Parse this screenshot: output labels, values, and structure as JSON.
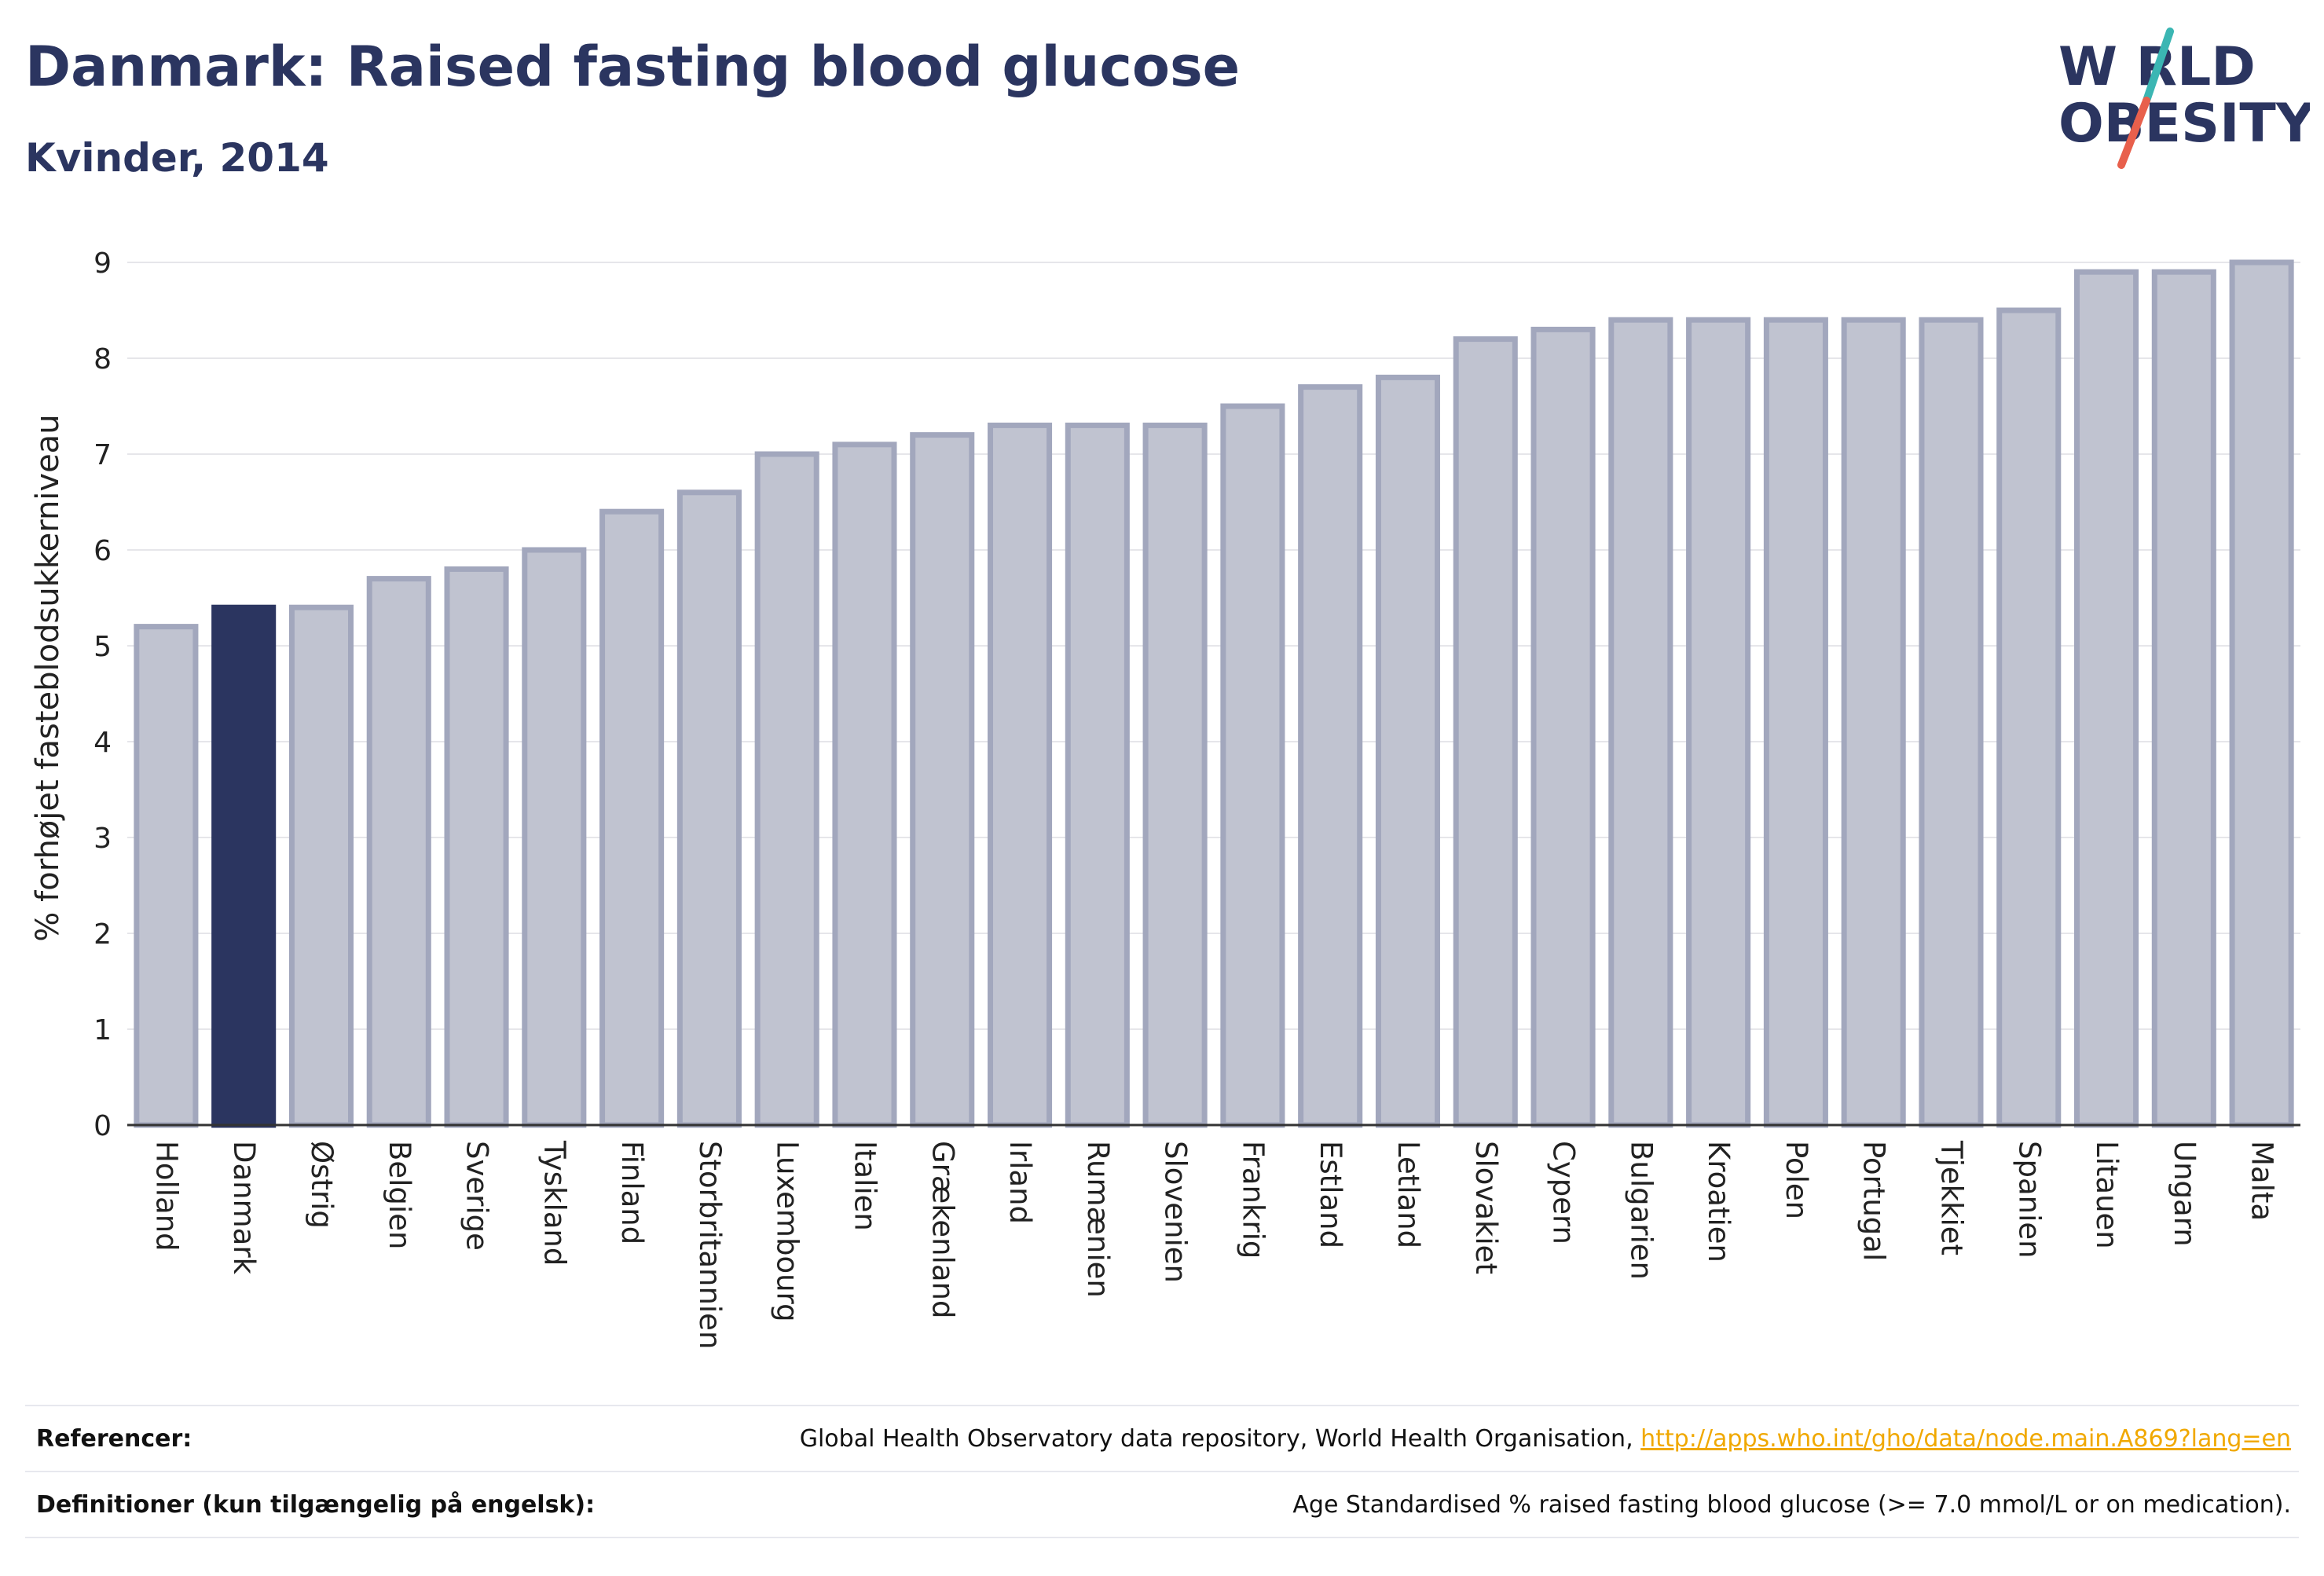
{
  "header": {
    "title": "Danmark: Raised fasting blood glucose",
    "subtitle": "Kvinder, 2014"
  },
  "logo": {
    "line1": "W RLD",
    "line2": "OBESITY",
    "accent_colors": [
      "#3bb6b3",
      "#e8604c"
    ],
    "text_color": "#2b3560"
  },
  "chart_data": {
    "type": "bar",
    "title": "Danmark: Raised fasting blood glucose",
    "subtitle": "Kvinder, 2014",
    "ylabel": "% forhøjet fasteblodsukkerniveau",
    "xlabel": "",
    "ylim": [
      0,
      9
    ],
    "yticks": [
      "0",
      "1",
      "2",
      "3",
      "4",
      "5",
      "6",
      "7",
      "8",
      "9"
    ],
    "grid": true,
    "highlight": "Danmark",
    "colors": {
      "bar": "#c0c3d0",
      "bar_border": "#a2a7bd",
      "highlight": "#2b3560"
    },
    "categories": [
      "Holland",
      "Danmark",
      "Østrig",
      "Belgien",
      "Sverige",
      "Tyskland",
      "Finland",
      "Storbritannien",
      "Luxembourg",
      "Italien",
      "Grækenland",
      "Irland",
      "Rumænien",
      "Slovenien",
      "Frankrig",
      "Estland",
      "Letland",
      "Slovakiet",
      "Cypern",
      "Bulgarien",
      "Kroatien",
      "Polen",
      "Portugal",
      "Tjekkiet",
      "Spanien",
      "Litauen",
      "Ungarn",
      "Malta"
    ],
    "values": [
      5.2,
      5.4,
      5.4,
      5.7,
      5.8,
      6.0,
      6.4,
      6.6,
      7.0,
      7.1,
      7.2,
      7.3,
      7.3,
      7.3,
      7.5,
      7.7,
      7.8,
      8.2,
      8.3,
      8.4,
      8.4,
      8.4,
      8.4,
      8.4,
      8.5,
      8.9,
      8.9,
      9.0
    ]
  },
  "footer": {
    "references_label": "Referencer:",
    "references_text": "Global Health Observatory data repository, World Health Organisation, ",
    "references_link": "http://apps.who.int/gho/data/node.main.A869?lang=en",
    "definitions_label": "Definitioner (kun tilgængelig på engelsk):",
    "definitions_text": "Age Standardised % raised fasting blood glucose (>= 7.0 mmol/L or on medication)."
  }
}
